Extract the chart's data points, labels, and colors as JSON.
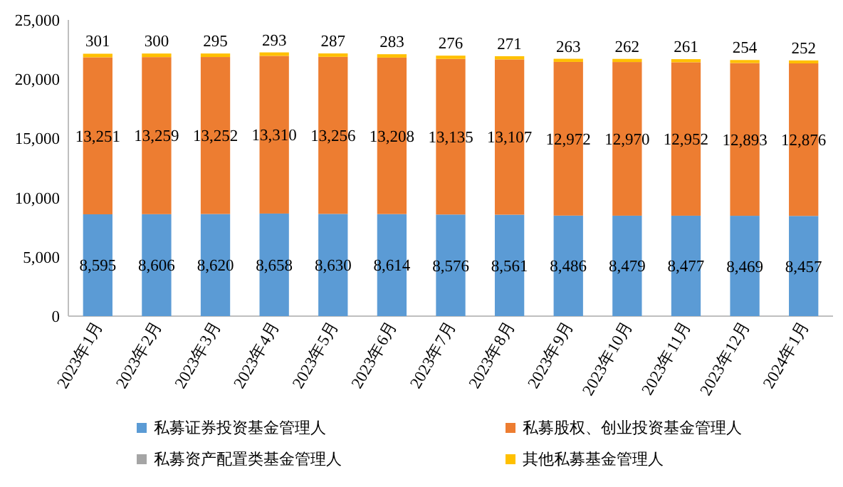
{
  "chart_data": {
    "type": "bar",
    "stacked": true,
    "categories": [
      "2023年1月",
      "2023年2月",
      "2023年3月",
      "2023年4月",
      "2023年5月",
      "2023年6月",
      "2023年7月",
      "2023年8月",
      "2023年9月",
      "2023年10月",
      "2023年11月",
      "2023年12月",
      "2024年1月"
    ],
    "series": [
      {
        "name": "私募证券投资基金管理人",
        "color": "#5b9bd5",
        "values": [
          8595,
          8606,
          8620,
          8658,
          8630,
          8614,
          8576,
          8561,
          8486,
          8479,
          8477,
          8469,
          8457
        ],
        "value_labels": [
          "8,595",
          "8,606",
          "8,620",
          "8,658",
          "8,630",
          "8,614",
          "8,576",
          "8,561",
          "8,486",
          "8,479",
          "8,477",
          "8,469",
          "8,457"
        ]
      },
      {
        "name": "私募股权、创业投资基金管理人",
        "color": "#ed7d31",
        "values": [
          13251,
          13259,
          13252,
          13310,
          13256,
          13208,
          13135,
          13107,
          12972,
          12970,
          12952,
          12893,
          12876
        ],
        "value_labels": [
          "13,251",
          "13,259",
          "13,252",
          "13,310",
          "13,256",
          "13,208",
          "13,135",
          "13,107",
          "12,972",
          "12,970",
          "12,952",
          "12,893",
          "12,876"
        ]
      },
      {
        "name": "私募资产配置类基金管理人",
        "color": "#a5a5a5",
        "values": [
          null,
          null,
          null,
          null,
          null,
          null,
          null,
          null,
          null,
          null,
          null,
          null,
          null
        ]
      },
      {
        "name": "其他私募基金管理人",
        "color": "#ffc000",
        "values": [
          301,
          300,
          295,
          293,
          287,
          283,
          276,
          271,
          263,
          262,
          261,
          254,
          252
        ],
        "value_labels": [
          "301",
          "300",
          "295",
          "293",
          "287",
          "283",
          "276",
          "271",
          "263",
          "262",
          "261",
          "254",
          "252"
        ]
      }
    ],
    "ylim": [
      0,
      25000
    ],
    "yticks": [
      {
        "value": 0,
        "label": "0"
      },
      {
        "value": 5000,
        "label": "5,000"
      },
      {
        "value": 10000,
        "label": "10,000"
      },
      {
        "value": 15000,
        "label": "15,000"
      },
      {
        "value": 20000,
        "label": "20,000"
      },
      {
        "value": 25000,
        "label": "25,000"
      }
    ],
    "grid": false,
    "legend": "bottom"
  }
}
